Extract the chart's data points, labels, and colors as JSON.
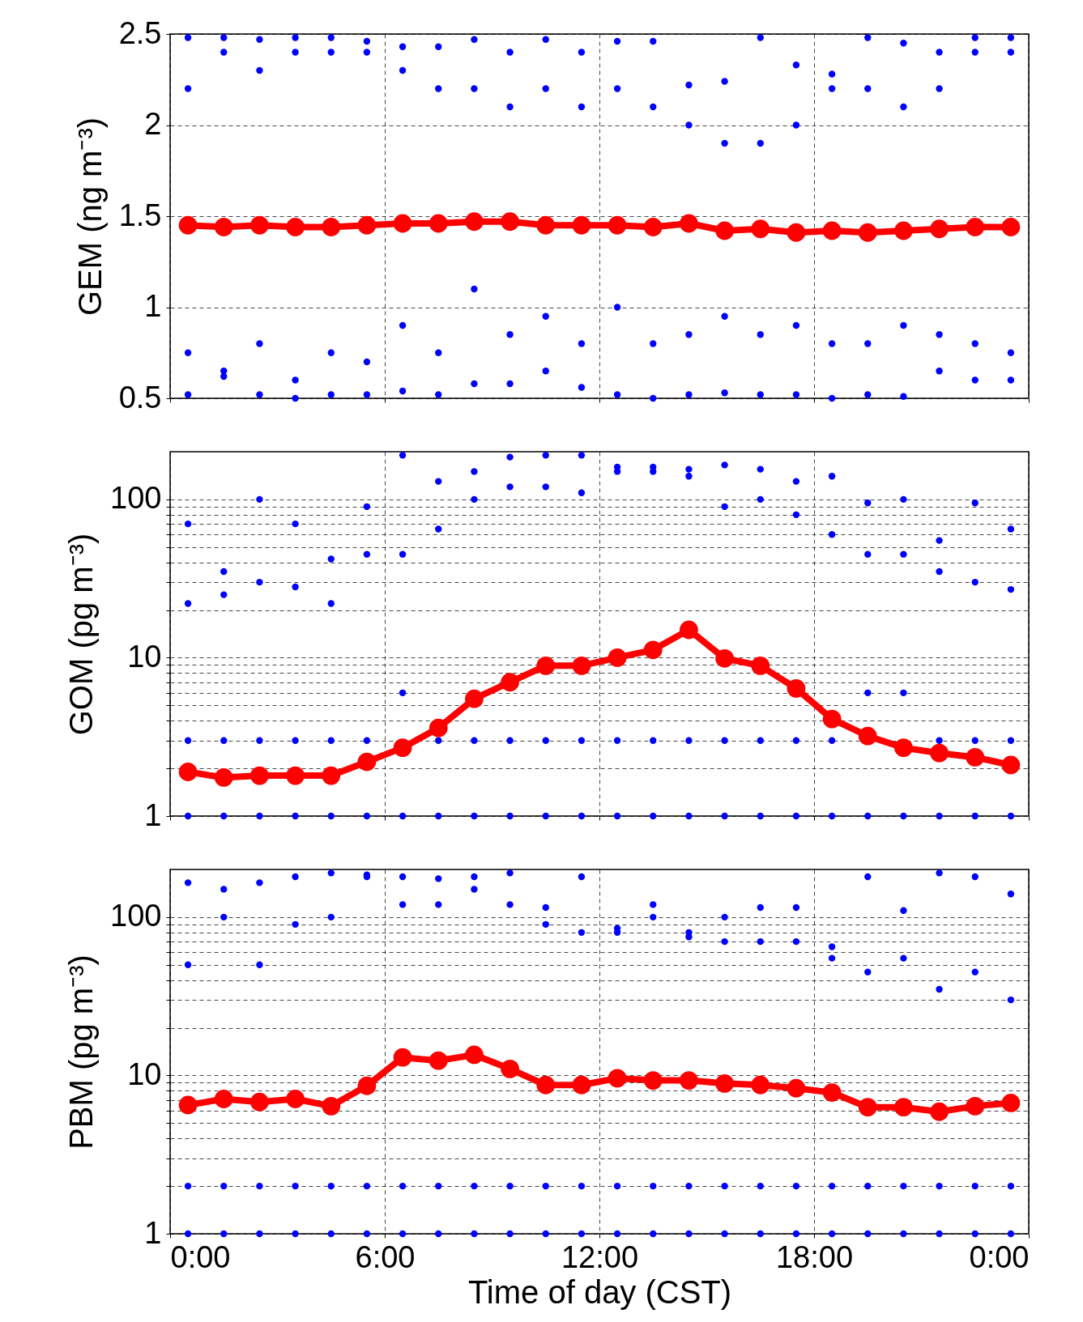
{
  "chart_data": [
    {
      "type": "scatter",
      "ylabel": "GEM (ng m⁻³)",
      "marker": "circle",
      "grid": true,
      "tick_labels": "y",
      "xlim": [
        0,
        24
      ],
      "xticks": [
        {
          "value": 0,
          "label": null
        },
        {
          "value": 6,
          "label": null
        },
        {
          "value": 12,
          "label": null
        },
        {
          "value": 18,
          "label": null
        },
        {
          "value": 24,
          "label": null
        }
      ],
      "ylim": [
        0.5,
        2.5
      ],
      "yticks": [
        0.5,
        1,
        1.5,
        2,
        2.5
      ],
      "x": [
        0.5,
        1.5,
        2.5,
        3.5,
        4.5,
        5.5,
        6.5,
        7.5,
        8.5,
        9.5,
        10.5,
        11.5,
        12.5,
        13.5,
        14.5,
        15.5,
        16.5,
        17.5,
        18.5,
        19.5,
        20.5,
        21.5,
        22.5,
        23.5
      ],
      "series": [
        {
          "type": "scatter",
          "color": "#0000ff",
          "values": [
            0.52,
            0.62,
            0.52,
            0.5,
            0.52,
            0.52,
            0.54,
            0.52,
            0.58,
            0.58,
            0.65,
            0.56,
            0.52,
            0.5,
            0.52,
            0.53,
            0.52,
            0.52,
            0.5,
            0.52,
            0.51,
            0.65,
            0.6,
            0.6
          ]
        },
        {
          "type": "scatter",
          "color": "#0000ff",
          "values": [
            0.75,
            0.65,
            0.8,
            0.6,
            0.75,
            0.7,
            0.9,
            0.75,
            1.1,
            0.85,
            0.95,
            0.8,
            1.0,
            0.8,
            0.85,
            0.95,
            0.85,
            0.9,
            0.8,
            0.8,
            0.9,
            0.85,
            0.8,
            0.75
          ]
        },
        {
          "type": "scatter",
          "color": "#0000ff",
          "values": [
            2.2,
            2.4,
            2.3,
            2.4,
            2.4,
            2.4,
            2.3,
            2.2,
            2.2,
            2.1,
            2.2,
            2.1,
            2.2,
            2.1,
            2.0,
            1.9,
            1.9,
            2.0,
            2.2,
            2.2,
            2.1,
            2.2,
            2.4,
            2.4
          ]
        },
        {
          "type": "scatter",
          "color": "#0000ff",
          "values": [
            2.48,
            2.48,
            2.47,
            2.48,
            2.48,
            2.46,
            2.43,
            2.43,
            2.47,
            2.4,
            2.47,
            2.4,
            2.46,
            2.46,
            2.22,
            2.24,
            2.48,
            2.33,
            2.28,
            2.48,
            2.45,
            2.4,
            2.48,
            2.48
          ]
        },
        {
          "type": "line",
          "color": "#ff0000",
          "values": [
            1.45,
            1.44,
            1.45,
            1.44,
            1.44,
            1.45,
            1.46,
            1.46,
            1.47,
            1.47,
            1.45,
            1.45,
            1.45,
            1.44,
            1.46,
            1.42,
            1.43,
            1.41,
            1.42,
            1.41,
            1.42,
            1.43,
            1.44,
            1.44
          ]
        }
      ]
    },
    {
      "type": "scatter",
      "ylabel": "GOM (pg m⁻³)",
      "marker": "circle",
      "grid": true,
      "tick_labels": "y",
      "log": true,
      "xlim": [
        0,
        24
      ],
      "xticks": [
        {
          "value": 0,
          "label": null
        },
        {
          "value": 6,
          "label": null
        },
        {
          "value": 12,
          "label": null
        },
        {
          "value": 18,
          "label": null
        },
        {
          "value": 24,
          "label": null
        }
      ],
      "ylim": [
        1,
        200
      ],
      "yticks": [
        1,
        {
          "value": 2,
          "label": null
        },
        {
          "value": 3,
          "label": null
        },
        {
          "value": 4,
          "label": null
        },
        {
          "value": 5,
          "label": null
        },
        {
          "value": 6,
          "label": null
        },
        {
          "value": 7,
          "label": null
        },
        {
          "value": 8,
          "label": null
        },
        {
          "value": 9,
          "label": null
        },
        10,
        {
          "value": 20,
          "label": null
        },
        {
          "value": 30,
          "label": null
        },
        {
          "value": 40,
          "label": null
        },
        {
          "value": 50,
          "label": null
        },
        {
          "value": 60,
          "label": null
        },
        {
          "value": 70,
          "label": null
        },
        {
          "value": 80,
          "label": null
        },
        {
          "value": 90,
          "label": null
        },
        100
      ],
      "x": [
        0.5,
        1.5,
        2.5,
        3.5,
        4.5,
        5.5,
        6.5,
        7.5,
        8.5,
        9.5,
        10.5,
        11.5,
        12.5,
        13.5,
        14.5,
        15.5,
        16.5,
        17.5,
        18.5,
        19.5,
        20.5,
        21.5,
        22.5,
        23.5
      ],
      "series": [
        {
          "type": "scatter",
          "color": "#0000ff",
          "values": [
            1,
            1,
            1,
            1,
            1,
            1,
            1,
            1,
            1,
            1,
            1,
            1,
            1,
            1,
            1,
            1,
            1,
            1,
            1,
            1,
            1,
            1,
            1,
            1
          ]
        },
        {
          "type": "scatter",
          "color": "#0000ff",
          "values": [
            3,
            3,
            3,
            3,
            3,
            3,
            6,
            3,
            3,
            3,
            3,
            3,
            3,
            3,
            3,
            3,
            3,
            3,
            3,
            6,
            6,
            3,
            3,
            3
          ]
        },
        {
          "type": "scatter",
          "color": "#0000ff",
          "values": [
            22,
            25,
            30,
            28,
            22,
            45,
            45,
            65,
            100,
            120,
            120,
            110,
            150,
            150,
            140,
            90,
            100,
            80,
            60,
            45,
            45,
            35,
            30,
            27
          ]
        },
        {
          "type": "scatter",
          "color": "#0000ff",
          "values": [
            70,
            35,
            100,
            70,
            42,
            90,
            190,
            130,
            150,
            185,
            190,
            190,
            160,
            160,
            155,
            165,
            155,
            130,
            140,
            95,
            100,
            55,
            95,
            65
          ]
        },
        {
          "type": "line",
          "color": "#ff0000",
          "values": [
            1.9,
            1.75,
            1.8,
            1.8,
            1.8,
            2.2,
            2.7,
            3.6,
            5.5,
            7.0,
            8.9,
            8.9,
            10,
            11.2,
            15,
            9.9,
            8.9,
            6.4,
            4.1,
            3.2,
            2.7,
            2.5,
            2.35,
            2.1
          ]
        }
      ]
    },
    {
      "type": "scatter",
      "ylabel": "PBM (pg m⁻³)",
      "xlabel": "Time of day (CST)",
      "marker": "circle",
      "grid": true,
      "log": true,
      "xlim": [
        0,
        24
      ],
      "xticks": [
        {
          "value": 0,
          "label": "0:00"
        },
        {
          "value": 6,
          "label": "6:00"
        },
        {
          "value": 12,
          "label": "12:00"
        },
        {
          "value": 18,
          "label": "18:00"
        },
        {
          "value": 24,
          "label": "0:00"
        }
      ],
      "ylim": [
        1,
        200
      ],
      "yticks": [
        1,
        {
          "value": 2,
          "label": null
        },
        {
          "value": 3,
          "label": null
        },
        {
          "value": 4,
          "label": null
        },
        {
          "value": 5,
          "label": null
        },
        {
          "value": 6,
          "label": null
        },
        {
          "value": 7,
          "label": null
        },
        {
          "value": 8,
          "label": null
        },
        {
          "value": 9,
          "label": null
        },
        10,
        {
          "value": 20,
          "label": null
        },
        {
          "value": 30,
          "label": null
        },
        {
          "value": 40,
          "label": null
        },
        {
          "value": 50,
          "label": null
        },
        {
          "value": 60,
          "label": null
        },
        {
          "value": 70,
          "label": null
        },
        {
          "value": 80,
          "label": null
        },
        {
          "value": 90,
          "label": null
        },
        100
      ],
      "x": [
        0.5,
        1.5,
        2.5,
        3.5,
        4.5,
        5.5,
        6.5,
        7.5,
        8.5,
        9.5,
        10.5,
        11.5,
        12.5,
        13.5,
        14.5,
        15.5,
        16.5,
        17.5,
        18.5,
        19.5,
        20.5,
        21.5,
        22.5,
        23.5
      ],
      "series": [
        {
          "type": "scatter",
          "color": "#0000ff",
          "values": [
            1,
            1,
            1,
            1,
            1,
            1,
            1,
            1,
            1,
            1,
            1,
            1,
            1,
            1,
            1,
            1,
            1,
            1,
            1,
            1,
            1,
            1,
            1,
            1
          ]
        },
        {
          "type": "scatter",
          "color": "#0000ff",
          "values": [
            2,
            2,
            2,
            2,
            2,
            2,
            2,
            2,
            2,
            2,
            2,
            2,
            2,
            2,
            2,
            2,
            2,
            2,
            2,
            2,
            2,
            2,
            2,
            2
          ]
        },
        {
          "type": "scatter",
          "color": "#0000ff",
          "values": [
            50,
            100,
            50,
            90,
            100,
            180,
            120,
            120,
            150,
            120,
            90,
            80,
            80,
            100,
            75,
            70,
            70,
            70,
            55,
            45,
            55,
            35,
            45,
            30
          ]
        },
        {
          "type": "scatter",
          "color": "#0000ff",
          "values": [
            165,
            150,
            165,
            180,
            190,
            185,
            180,
            175,
            180,
            190,
            115,
            180,
            85,
            120,
            80,
            100,
            115,
            115,
            65,
            180,
            110,
            190,
            180,
            140
          ]
        },
        {
          "type": "line",
          "color": "#ff0000",
          "values": [
            6.5,
            7.1,
            6.8,
            7.1,
            6.4,
            8.6,
            13,
            12.4,
            13.5,
            11,
            8.7,
            8.7,
            9.6,
            9.3,
            9.3,
            8.9,
            8.7,
            8.3,
            7.8,
            6.3,
            6.3,
            5.9,
            6.4,
            6.7
          ]
        }
      ]
    }
  ]
}
